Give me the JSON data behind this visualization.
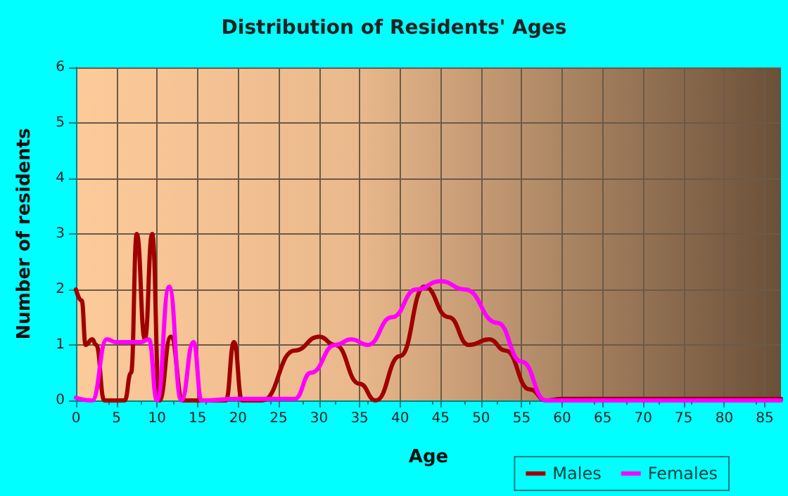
{
  "chart_data": {
    "type": "line",
    "title": "Distribution of Residents' Ages",
    "xlabel": "Age",
    "ylabel": "Number of residents",
    "xlim": [
      0,
      87
    ],
    "xticks": [
      0,
      5,
      10,
      15,
      20,
      25,
      30,
      35,
      40,
      45,
      50,
      55,
      60,
      65,
      70,
      75,
      80,
      85
    ],
    "ylim": [
      0,
      6
    ],
    "yticks": [
      0,
      1,
      2,
      3,
      4,
      5,
      6
    ],
    "grid": true,
    "legend": "bottom right",
    "marker": "none",
    "line_style": "solid",
    "series": [
      {
        "name": "Males",
        "color": "#a00000",
        "x": [
          0,
          0.7,
          1.2,
          2,
          2.5,
          3.5,
          4.5,
          6,
          6.8,
          7.5,
          8.5,
          9.4,
          10.3,
          11.7,
          13.2,
          15,
          18.5,
          19.5,
          20.5,
          23,
          27,
          30,
          32,
          35,
          37,
          40,
          43,
          46,
          48.5,
          51,
          53,
          56,
          58,
          60,
          70,
          87
        ],
        "values": [
          2.0,
          1.8,
          1.0,
          1.1,
          1.0,
          0,
          0,
          0,
          0.5,
          3.0,
          1.1,
          3.0,
          0,
          1.15,
          0,
          0,
          0,
          1.05,
          0,
          0,
          0.9,
          1.15,
          1.0,
          0.3,
          0,
          0.8,
          2.05,
          1.5,
          1.0,
          1.1,
          0.9,
          0.2,
          0,
          0.03,
          0.03,
          0.03
        ]
      },
      {
        "name": "Females",
        "color": "#ff00ff",
        "x": [
          0,
          2,
          3.8,
          5,
          8,
          9,
          10,
          11.5,
          13,
          14.5,
          15.5,
          20,
          27,
          29,
          32,
          34,
          36,
          39,
          42,
          45,
          48,
          52,
          55,
          58,
          87
        ],
        "values": [
          0.05,
          0,
          1.1,
          1.05,
          1.05,
          1.1,
          0,
          2.05,
          0,
          1.05,
          0,
          0.03,
          0.03,
          0.5,
          1.0,
          1.1,
          1.0,
          1.5,
          2.0,
          2.15,
          2.0,
          1.4,
          0.7,
          0,
          0
        ]
      }
    ]
  }
}
